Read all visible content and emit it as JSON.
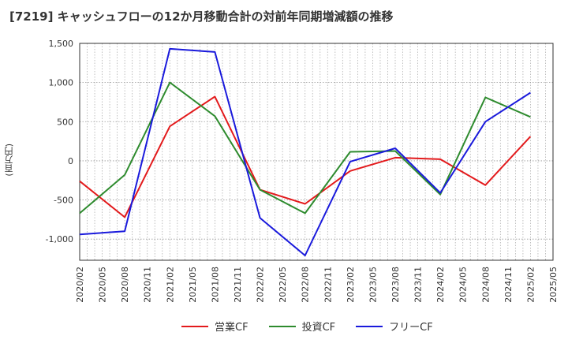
{
  "title": "[7219]  キャッシュフローの12か月移動合計の対前年同期増減額の推移",
  "chart_data": {
    "type": "line",
    "title": "[7219]  キャッシュフローの12か月移動合計の対前年同期増減額の推移",
    "ylabel": "(百万円)",
    "xlabel": "",
    "ylim": [
      -1270,
      1500
    ],
    "yticks": [
      -1000,
      -500,
      0,
      500,
      1000,
      1500
    ],
    "ytick_labels": [
      "-1,000",
      "-500",
      "0",
      "500",
      "1,000",
      "1,500"
    ],
    "categories": [
      "2020/02",
      "2020/05",
      "2020/08",
      "2020/11",
      "2021/02",
      "2021/05",
      "2021/08",
      "2021/11",
      "2022/02",
      "2022/05",
      "2022/08",
      "2022/11",
      "2023/02",
      "2023/05",
      "2023/08",
      "2023/11",
      "2024/02",
      "2024/05",
      "2024/08",
      "2024/11",
      "2025/02",
      "2025/05"
    ],
    "grid": true,
    "legend_position": "bottom",
    "series": [
      {
        "name": "営業CF",
        "color": "#e31a1c",
        "values": [
          -260,
          null,
          -720,
          null,
          440,
          null,
          820,
          null,
          -370,
          null,
          -550,
          null,
          -130,
          null,
          40,
          null,
          20,
          null,
          -310,
          null,
          310,
          null
        ]
      },
      {
        "name": "投資CF",
        "color": "#2e8b2e",
        "values": [
          -670,
          null,
          -180,
          null,
          1000,
          null,
          570,
          null,
          -370,
          null,
          -670,
          null,
          115,
          null,
          125,
          null,
          -430,
          null,
          810,
          null,
          560,
          null
        ]
      },
      {
        "name": "フリーCF",
        "color": "#1a1adc",
        "values": [
          -940,
          null,
          -900,
          null,
          1430,
          null,
          1390,
          null,
          -730,
          null,
          -1210,
          null,
          -10,
          null,
          160,
          null,
          -410,
          null,
          500,
          null,
          870,
          null
        ]
      }
    ]
  }
}
